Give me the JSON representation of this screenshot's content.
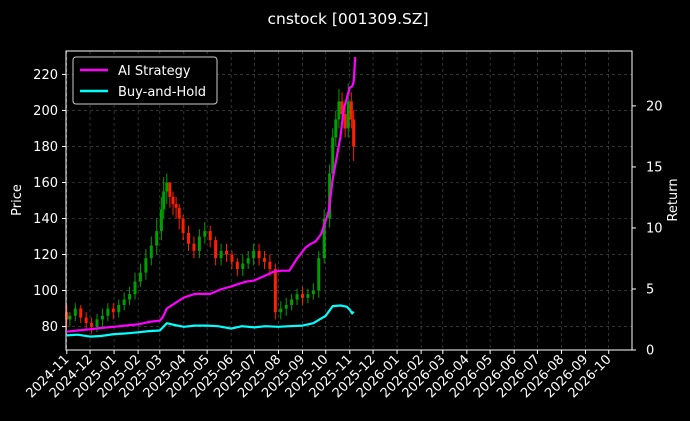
{
  "chart_data": {
    "type": "line",
    "title": "cnstock [001309.SZ]",
    "ylabel_left": "Price",
    "ylabel_right": "Return",
    "left_axis": {
      "ylim": [
        67,
        233
      ],
      "ticks": [
        80,
        100,
        120,
        140,
        160,
        180,
        200,
        220
      ]
    },
    "right_axis": {
      "ylim": [
        0,
        24.5
      ],
      "ticks": [
        0,
        5,
        10,
        15,
        20
      ]
    },
    "x_axis": {
      "range": [
        "2024-10-31",
        "2026-10-31"
      ],
      "tick_labels": [
        "2024-11",
        "2024-12",
        "2025-01",
        "2025-02",
        "2025-03",
        "2025-04",
        "2025-05",
        "2025-06",
        "2025-07",
        "2025-08",
        "2025-09",
        "2025-10",
        "2025-11",
        "2025-12",
        "2026-01",
        "2026-02",
        "2026-03",
        "2026-04",
        "2026-05",
        "2026-06",
        "2026-07",
        "2026-08",
        "2026-09",
        "2026-10"
      ]
    },
    "grid": true,
    "legend": {
      "placement": "top-left"
    },
    "colors": {
      "up": "#00a000",
      "down": "#ff2000",
      "ai": "#ff00ff",
      "bh": "#00ffff"
    },
    "series": [
      {
        "name": "AI Strategy",
        "axis": "right",
        "x": [
          "2024-11-01",
          "2024-11-15",
          "2024-12-01",
          "2024-12-15",
          "2025-01-01",
          "2025-01-15",
          "2025-02-01",
          "2025-02-15",
          "2025-03-01",
          "2025-03-05",
          "2025-03-10",
          "2025-03-20",
          "2025-04-01",
          "2025-04-15",
          "2025-04-25",
          "2025-05-05",
          "2025-05-20",
          "2025-06-01",
          "2025-06-10",
          "2025-06-20",
          "2025-07-01",
          "2025-07-15",
          "2025-07-25",
          "2025-08-05",
          "2025-08-15",
          "2025-08-25",
          "2025-09-05",
          "2025-09-12",
          "2025-09-18",
          "2025-09-25",
          "2025-10-01",
          "2025-10-05",
          "2025-10-10",
          "2025-10-20",
          "2025-10-24",
          "2025-10-28",
          "2025-11-01",
          "2025-11-04",
          "2025-11-06",
          "2025-11-08"
        ],
        "values": [
          1.5,
          1.6,
          1.7,
          1.8,
          1.9,
          2.0,
          2.1,
          2.3,
          2.4,
          2.7,
          3.4,
          3.8,
          4.3,
          4.6,
          4.6,
          4.6,
          5.0,
          5.2,
          5.4,
          5.6,
          5.7,
          6.1,
          6.4,
          6.5,
          6.5,
          7.5,
          8.4,
          8.7,
          8.9,
          9.5,
          10.6,
          11.4,
          14.0,
          17.5,
          19.7,
          20.6,
          21.5,
          21.6,
          22.0,
          24.0
        ]
      },
      {
        "name": "Buy-and-Hold",
        "axis": "right",
        "x": [
          "2024-11-01",
          "2024-11-15",
          "2024-12-01",
          "2024-12-15",
          "2025-01-01",
          "2025-01-15",
          "2025-02-01",
          "2025-02-15",
          "2025-03-01",
          "2025-03-10",
          "2025-03-20",
          "2025-04-01",
          "2025-04-15",
          "2025-05-01",
          "2025-05-15",
          "2025-06-01",
          "2025-06-15",
          "2025-07-01",
          "2025-07-15",
          "2025-08-01",
          "2025-08-15",
          "2025-09-01",
          "2025-09-15",
          "2025-10-01",
          "2025-10-10",
          "2025-10-20",
          "2025-10-28",
          "2025-11-01",
          "2025-11-04",
          "2025-11-06"
        ],
        "values": [
          1.2,
          1.25,
          1.1,
          1.15,
          1.3,
          1.35,
          1.45,
          1.55,
          1.6,
          2.2,
          2.05,
          1.9,
          2.0,
          2.0,
          1.95,
          1.75,
          1.95,
          1.85,
          1.95,
          1.9,
          1.95,
          2.0,
          2.2,
          2.8,
          3.6,
          3.65,
          3.55,
          3.3,
          3.0,
          3.15
        ]
      }
    ],
    "candles": {
      "axis": "left",
      "x": [
        "2024-11-01",
        "2024-11-05",
        "2024-11-12",
        "2024-11-19",
        "2024-11-26",
        "2024-12-03",
        "2024-12-10",
        "2024-12-17",
        "2024-12-24",
        "2024-12-31",
        "2025-01-07",
        "2025-01-14",
        "2025-01-21",
        "2025-01-28",
        "2025-02-04",
        "2025-02-11",
        "2025-02-18",
        "2025-02-25",
        "2025-03-03",
        "2025-03-06",
        "2025-03-10",
        "2025-03-14",
        "2025-03-18",
        "2025-03-22",
        "2025-03-26",
        "2025-03-31",
        "2025-04-07",
        "2025-04-14",
        "2025-04-21",
        "2025-04-28",
        "2025-05-05",
        "2025-05-12",
        "2025-05-19",
        "2025-05-26",
        "2025-06-02",
        "2025-06-09",
        "2025-06-16",
        "2025-06-23",
        "2025-06-30",
        "2025-07-07",
        "2025-07-14",
        "2025-07-21",
        "2025-07-28",
        "2025-08-04",
        "2025-08-11",
        "2025-08-18",
        "2025-08-25",
        "2025-09-01",
        "2025-09-08",
        "2025-09-15",
        "2025-09-22",
        "2025-09-29",
        "2025-10-06",
        "2025-10-10",
        "2025-10-14",
        "2025-10-18",
        "2025-10-22",
        "2025-10-26",
        "2025-10-30",
        "2025-11-03",
        "2025-11-06"
      ],
      "open": [
        88,
        84,
        86,
        90,
        85,
        82,
        80,
        84,
        86,
        90,
        88,
        92,
        95,
        98,
        105,
        110,
        118,
        125,
        133,
        145,
        155,
        160,
        152,
        148,
        146,
        140,
        132,
        126,
        122,
        130,
        133,
        128,
        118,
        122,
        120,
        116,
        112,
        115,
        118,
        122,
        118,
        116,
        112,
        88,
        90,
        92,
        95,
        98,
        96,
        98,
        100,
        118,
        140,
        165,
        185,
        195,
        205,
        198,
        190,
        205,
        195
      ],
      "close": [
        84,
        86,
        90,
        85,
        82,
        80,
        84,
        86,
        90,
        88,
        92,
        95,
        98,
        105,
        110,
        118,
        125,
        133,
        145,
        155,
        160,
        152,
        148,
        146,
        140,
        132,
        126,
        122,
        130,
        133,
        128,
        118,
        122,
        120,
        116,
        112,
        115,
        118,
        122,
        118,
        116,
        112,
        88,
        90,
        92,
        95,
        98,
        96,
        98,
        100,
        118,
        140,
        165,
        185,
        195,
        205,
        198,
        190,
        205,
        195,
        180
      ],
      "high": [
        92,
        88,
        93,
        92,
        88,
        85,
        87,
        90,
        93,
        93,
        95,
        99,
        102,
        110,
        115,
        123,
        130,
        140,
        152,
        163,
        165,
        160,
        155,
        152,
        148,
        142,
        136,
        130,
        134,
        138,
        136,
        130,
        126,
        126,
        122,
        118,
        120,
        122,
        126,
        126,
        122,
        120,
        115,
        94,
        96,
        98,
        101,
        102,
        101,
        104,
        122,
        145,
        170,
        190,
        200,
        212,
        210,
        202,
        215,
        210,
        200
      ],
      "low": [
        80,
        80,
        83,
        82,
        78,
        76,
        77,
        80,
        83,
        84,
        85,
        89,
        92,
        95,
        102,
        106,
        114,
        120,
        128,
        140,
        148,
        146,
        142,
        140,
        134,
        128,
        122,
        118,
        118,
        126,
        124,
        114,
        114,
        116,
        112,
        108,
        108,
        112,
        114,
        114,
        112,
        108,
        84,
        84,
        86,
        89,
        92,
        92,
        93,
        95,
        96,
        115,
        135,
        160,
        180,
        190,
        192,
        185,
        185,
        190,
        172
      ]
    }
  }
}
